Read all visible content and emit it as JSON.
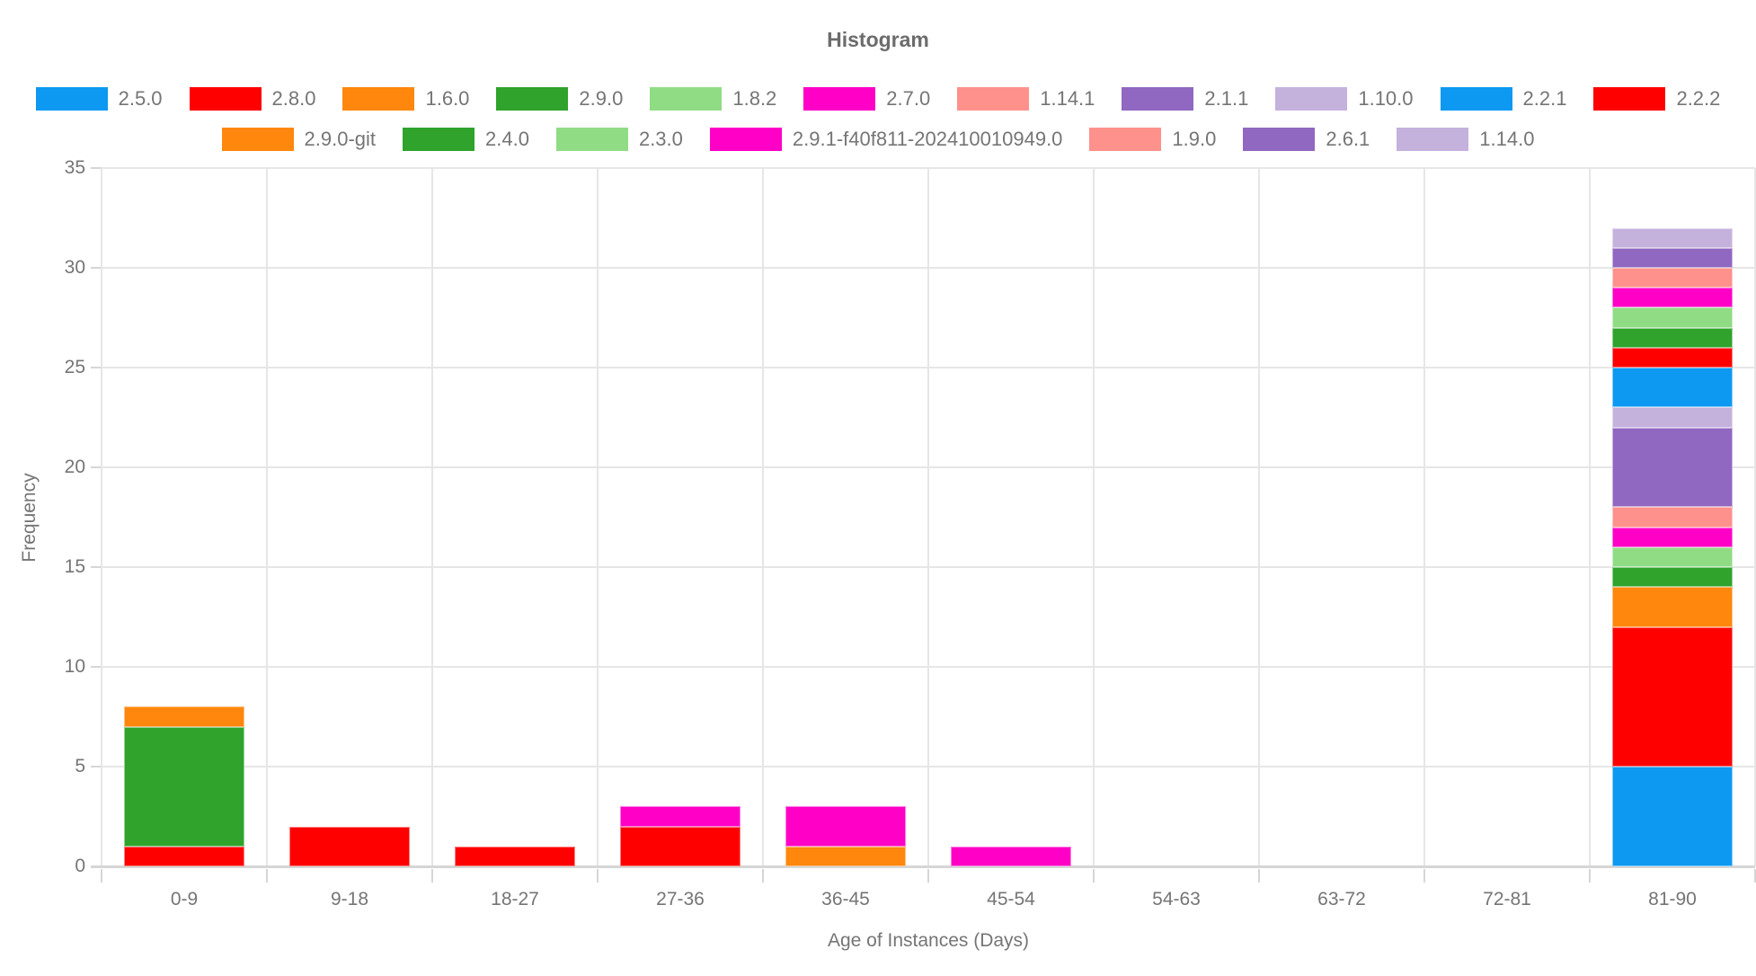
{
  "chart_data": {
    "type": "bar",
    "stacked": true,
    "title": "Histogram",
    "xlabel": "Age of Instances (Days)",
    "ylabel": "Frequency",
    "categories": [
      "0-9",
      "9-18",
      "18-27",
      "27-36",
      "36-45",
      "45-54",
      "54-63",
      "63-72",
      "72-81",
      "81-90"
    ],
    "ylim": [
      0,
      35
    ],
    "yticks": [
      0,
      5,
      10,
      15,
      20,
      25,
      30,
      35
    ],
    "grid": true,
    "legend_position": "top",
    "legend_wrap_index": 11,
    "series": [
      {
        "name": "2.5.0",
        "color": "#0D99F2",
        "values": [
          0,
          0,
          0,
          0,
          0,
          0,
          0,
          0,
          0,
          5
        ]
      },
      {
        "name": "2.8.0",
        "color": "#FE0000",
        "values": [
          1,
          2,
          1,
          2,
          0,
          0,
          0,
          0,
          0,
          7
        ]
      },
      {
        "name": "1.6.0",
        "color": "#FF870D",
        "values": [
          0,
          0,
          0,
          0,
          1,
          0,
          0,
          0,
          0,
          2
        ]
      },
      {
        "name": "2.9.0",
        "color": "#2FA32C",
        "values": [
          6,
          0,
          0,
          0,
          0,
          0,
          0,
          0,
          0,
          1
        ]
      },
      {
        "name": "1.8.2",
        "color": "#90DC85",
        "values": [
          0,
          0,
          0,
          0,
          0,
          0,
          0,
          0,
          0,
          1
        ]
      },
      {
        "name": "2.7.0",
        "color": "#FE00C6",
        "values": [
          0,
          0,
          0,
          1,
          2,
          1,
          0,
          0,
          0,
          1
        ]
      },
      {
        "name": "1.14.1",
        "color": "#FF918C",
        "values": [
          0,
          0,
          0,
          0,
          0,
          0,
          0,
          0,
          0,
          1
        ]
      },
      {
        "name": "2.1.1",
        "color": "#9067C1",
        "values": [
          0,
          0,
          0,
          0,
          0,
          0,
          0,
          0,
          0,
          4
        ]
      },
      {
        "name": "1.10.0",
        "color": "#C4B1DC",
        "values": [
          0,
          0,
          0,
          0,
          0,
          0,
          0,
          0,
          0,
          1
        ]
      },
      {
        "name": "2.2.1",
        "color": "#0D99F2",
        "values": [
          0,
          0,
          0,
          0,
          0,
          0,
          0,
          0,
          0,
          2
        ]
      },
      {
        "name": "2.2.2",
        "color": "#FE0000",
        "values": [
          0,
          0,
          0,
          0,
          0,
          0,
          0,
          0,
          0,
          1
        ]
      },
      {
        "name": "2.9.0-git",
        "color": "#FF870D",
        "values": [
          1,
          0,
          0,
          0,
          0,
          0,
          0,
          0,
          0,
          0
        ]
      },
      {
        "name": "2.4.0",
        "color": "#2FA32C",
        "values": [
          0,
          0,
          0,
          0,
          0,
          0,
          0,
          0,
          0,
          1
        ]
      },
      {
        "name": "2.3.0",
        "color": "#90DC85",
        "values": [
          0,
          0,
          0,
          0,
          0,
          0,
          0,
          0,
          0,
          1
        ]
      },
      {
        "name": "2.9.1-f40f811-202410010949.0",
        "color": "#FE00C6",
        "values": [
          0,
          0,
          0,
          0,
          0,
          0,
          0,
          0,
          0,
          1
        ]
      },
      {
        "name": "1.9.0",
        "color": "#FF918C",
        "values": [
          0,
          0,
          0,
          0,
          0,
          0,
          0,
          0,
          0,
          1
        ]
      },
      {
        "name": "2.6.1",
        "color": "#9067C1",
        "values": [
          0,
          0,
          0,
          0,
          0,
          0,
          0,
          0,
          0,
          1
        ]
      },
      {
        "name": "1.14.0",
        "color": "#C4B1DC",
        "values": [
          0,
          0,
          0,
          0,
          0,
          0,
          0,
          0,
          0,
          1
        ]
      }
    ]
  }
}
